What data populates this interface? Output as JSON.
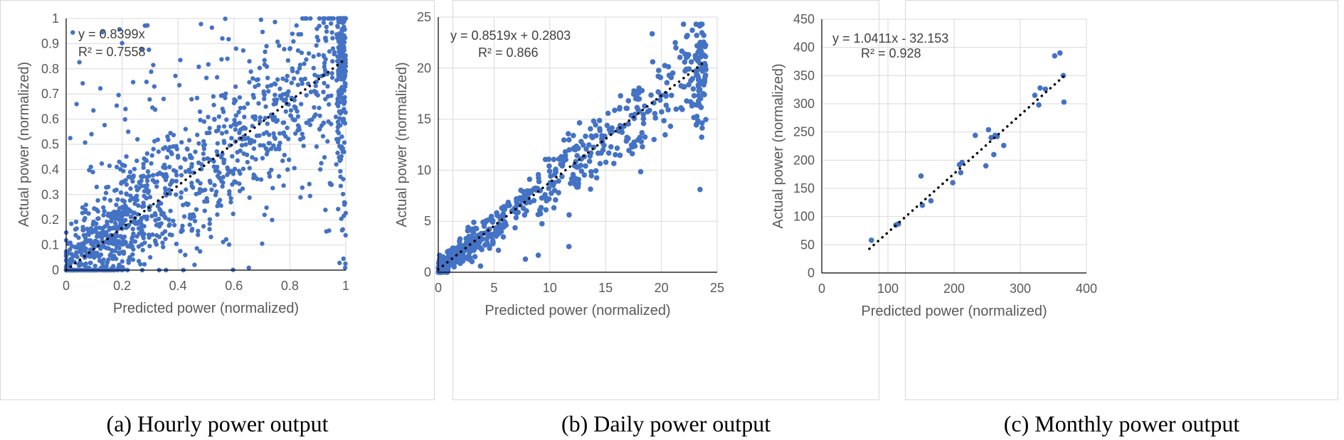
{
  "chart_data": [
    {
      "type": "scatter",
      "title": "",
      "caption": "(a) Hourly power output",
      "xlabel": "Predicted power (normalized)",
      "ylabel": "Actual power (normalized)",
      "xlim": [
        0,
        1
      ],
      "ylim": [
        0,
        1
      ],
      "xticks": [
        0,
        0.2,
        0.4,
        0.6,
        0.8,
        1
      ],
      "xtick_labels": [
        "0",
        "0.2",
        "0.4",
        "0.6",
        "0.8",
        "1"
      ],
      "yticks": [
        0,
        0.1,
        0.2,
        0.3,
        0.4,
        0.5,
        0.6,
        0.7,
        0.8,
        0.9,
        1
      ],
      "ytick_labels": [
        "0",
        "0.1",
        "0.2",
        "0.3",
        "0.4",
        "0.5",
        "0.6",
        "0.7",
        "0.8",
        "0.9",
        "1"
      ],
      "grid": true,
      "marker_color": "#4472C4",
      "trendline": {
        "slope": 0.8399,
        "intercept": 0,
        "color": "#000000"
      },
      "equation": "y = 0.8399x",
      "r_squared": "R² = 0.7558",
      "point_generator": {
        "count": 1400,
        "seed": 11,
        "noise": 0.18,
        "spread": "wide"
      }
    },
    {
      "type": "scatter",
      "title": "",
      "caption": "(b) Daily power output",
      "xlabel": "Predicted power (normalized)",
      "ylabel": "Actual power (normalized)",
      "xlim": [
        0,
        25
      ],
      "ylim": [
        0,
        25
      ],
      "xticks": [
        0,
        5,
        10,
        15,
        20,
        25
      ],
      "xtick_labels": [
        "0",
        "5",
        "10",
        "15",
        "20",
        "25"
      ],
      "yticks": [
        0,
        5,
        10,
        15,
        20,
        25
      ],
      "ytick_labels": [
        "0",
        "5",
        "10",
        "15",
        "20",
        "25"
      ],
      "grid": true,
      "marker_color": "#4472C4",
      "trendline": {
        "slope": 0.8519,
        "intercept": 0.2803,
        "color": "#000000"
      },
      "equation": "y = 0.8519x + 0.2803",
      "r_squared": "R² = 0.866",
      "point_generator": {
        "count": 700,
        "seed": 23,
        "noise": 1.8,
        "spread": "daily"
      }
    },
    {
      "type": "scatter",
      "title": "",
      "caption": "(c) Monthly power output",
      "xlabel": "Predicted power (normalized)",
      "ylabel": "Actual power (normalized)",
      "xlim": [
        0,
        400
      ],
      "ylim": [
        0,
        450
      ],
      "xticks": [
        0,
        100,
        200,
        300,
        400
      ],
      "xtick_labels": [
        "0",
        "100",
        "200",
        "300",
        "400"
      ],
      "yticks": [
        0,
        50,
        100,
        150,
        200,
        250,
        300,
        350,
        400,
        450
      ],
      "ytick_labels": [
        "0",
        "50",
        "100",
        "150",
        "200",
        "250",
        "300",
        "350",
        "400",
        "450"
      ],
      "grid": true,
      "marker_color": "#4472C4",
      "trendline": {
        "slope": 1.0411,
        "intercept": -32.153,
        "color": "#000000"
      },
      "equation": "y = 1.0411x - 32.153",
      "r_squared": "R² = 0.928",
      "points": [
        [
          75,
          58
        ],
        [
          112,
          85
        ],
        [
          116,
          87
        ],
        [
          150,
          172
        ],
        [
          152,
          120
        ],
        [
          165,
          128
        ],
        [
          198,
          160
        ],
        [
          208,
          192
        ],
        [
          210,
          178
        ],
        [
          212,
          196
        ],
        [
          232,
          244
        ],
        [
          248,
          190
        ],
        [
          252,
          254
        ],
        [
          256,
          240
        ],
        [
          260,
          210
        ],
        [
          262,
          244
        ],
        [
          265,
          242
        ],
        [
          275,
          226
        ],
        [
          322,
          315
        ],
        [
          328,
          298
        ],
        [
          330,
          328
        ],
        [
          338,
          326
        ],
        [
          352,
          385
        ],
        [
          360,
          390
        ],
        [
          366,
          303
        ],
        [
          365,
          350
        ]
      ]
    }
  ]
}
